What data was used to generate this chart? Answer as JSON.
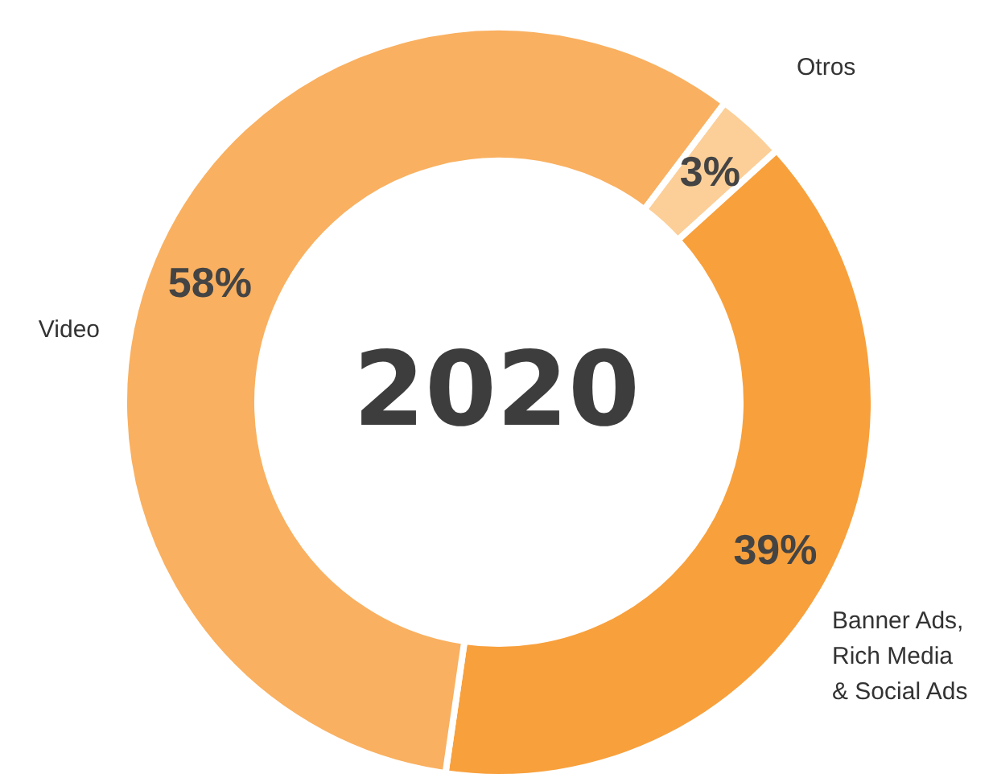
{
  "chart_data": {
    "type": "donut",
    "title": "2020",
    "categories": [
      "Otros",
      "Banner Ads,\nRich Media\n& Social Ads",
      "Video"
    ],
    "values": [
      3,
      39,
      58
    ],
    "colors": [
      "#fccf98",
      "#f8a03c",
      "#f9b060"
    ],
    "value_labels": [
      "3%",
      "39%",
      "58%"
    ],
    "legend": false
  }
}
